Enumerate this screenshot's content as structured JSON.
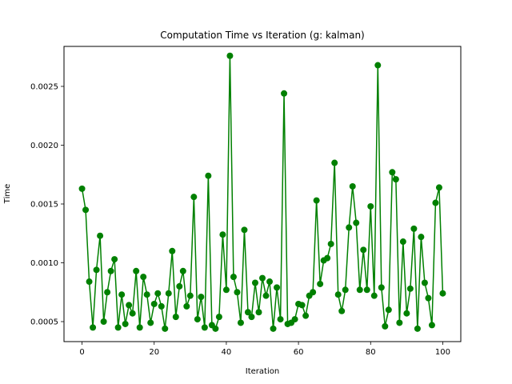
{
  "chart_data": {
    "type": "line",
    "title": "Computation Time vs Iteration (g: kalman)",
    "xlabel": "Iteration",
    "ylabel": "Time",
    "xlim": [
      -5,
      105
    ],
    "ylim": [
      0.00033,
      0.00284
    ],
    "xticks": [
      0,
      20,
      40,
      60,
      80,
      100
    ],
    "xtick_labels": [
      "0",
      "20",
      "40",
      "60",
      "80",
      "100"
    ],
    "yticks": [
      0.0005,
      0.001,
      0.0015,
      0.002,
      0.0025
    ],
    "ytick_labels": [
      "0.0005",
      "0.0010",
      "0.0015",
      "0.0020",
      "0.0025"
    ],
    "grid": false,
    "series": [
      {
        "color": "#008000",
        "marker": "circle",
        "x": [
          0,
          1,
          2,
          3,
          4,
          5,
          6,
          7,
          8,
          9,
          10,
          11,
          12,
          13,
          14,
          15,
          16,
          17,
          18,
          19,
          20,
          21,
          22,
          23,
          24,
          25,
          26,
          27,
          28,
          29,
          30,
          31,
          32,
          33,
          34,
          35,
          36,
          37,
          38,
          39,
          40,
          41,
          42,
          43,
          44,
          45,
          46,
          47,
          48,
          49,
          50,
          51,
          52,
          53,
          54,
          55,
          56,
          57,
          58,
          59,
          60,
          61,
          62,
          63,
          64,
          65,
          66,
          67,
          68,
          69,
          70,
          71,
          72,
          73,
          74,
          75,
          76,
          77,
          78,
          79,
          80,
          81,
          82,
          83,
          84,
          85,
          86,
          87,
          88,
          89,
          90,
          91,
          92,
          93,
          94,
          95,
          96,
          97,
          98,
          99,
          100
        ],
        "values": [
          0.00163,
          0.00145,
          0.00084,
          0.00045,
          0.00094,
          0.00123,
          0.0005,
          0.00075,
          0.00093,
          0.00103,
          0.00045,
          0.00073,
          0.00048,
          0.00064,
          0.00057,
          0.00093,
          0.00045,
          0.00088,
          0.00073,
          0.00049,
          0.00065,
          0.00074,
          0.00063,
          0.00044,
          0.00074,
          0.0011,
          0.00054,
          0.0008,
          0.00093,
          0.00063,
          0.00072,
          0.00156,
          0.00052,
          0.00071,
          0.00045,
          0.00174,
          0.00047,
          0.00044,
          0.00054,
          0.00124,
          0.00077,
          0.00276,
          0.00088,
          0.00075,
          0.00049,
          0.00128,
          0.00058,
          0.00054,
          0.00083,
          0.00058,
          0.00087,
          0.00072,
          0.00084,
          0.00044,
          0.00079,
          0.00052,
          0.00244,
          0.00048,
          0.00049,
          0.00052,
          0.00065,
          0.00064,
          0.00055,
          0.00072,
          0.00075,
          0.00153,
          0.00082,
          0.00102,
          0.00104,
          0.00116,
          0.00185,
          0.00073,
          0.00059,
          0.00077,
          0.0013,
          0.00165,
          0.00134,
          0.00077,
          0.00111,
          0.00077,
          0.00148,
          0.00072,
          0.00268,
          0.00079,
          0.00046,
          0.0006,
          0.00177,
          0.00171,
          0.00049,
          0.00118,
          0.00057,
          0.00078,
          0.00129,
          0.00044,
          0.00122,
          0.00083,
          0.0007,
          0.00047,
          0.00151,
          0.00164,
          0.00074
        ]
      }
    ]
  }
}
